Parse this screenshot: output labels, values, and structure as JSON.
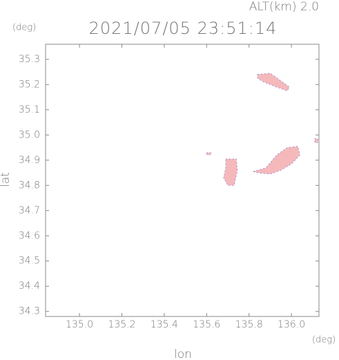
{
  "chart_data": {
    "type": "map",
    "title": "2021/07/05 23:51:14",
    "subtitle": "ALT(km) 2.0",
    "x_label": "lon",
    "y_label": "lat",
    "x_unit": "(deg)",
    "y_unit": "(deg)",
    "xlim": [
      134.84,
      136.13
    ],
    "ylim": [
      34.28,
      35.36
    ],
    "xticks": [
      {
        "value": 135,
        "label": "135.0"
      },
      135.2,
      135.4,
      135.6,
      135.8,
      {
        "value": 136,
        "label": "136.0"
      }
    ],
    "yticks": [
      34.3,
      34.4,
      34.5,
      34.6,
      34.7,
      34.8,
      34.9,
      {
        "value": 35,
        "label": "35.0"
      },
      35.1,
      35.2,
      35.3
    ],
    "color": "#f5b9bb",
    "edge_color": "#8a7bd8",
    "areas": [
      {
        "x": [
          135.84,
          135.9,
          135.95,
          135.99,
          135.98,
          135.93,
          135.87,
          135.84
        ],
        "y": [
          35.24,
          35.245,
          35.215,
          35.19,
          35.175,
          35.19,
          35.21,
          35.225
        ]
      },
      {
        "x": [
          135.69,
          135.74,
          135.745,
          135.73,
          135.7,
          135.68,
          135.69
        ],
        "y": [
          34.905,
          34.905,
          34.86,
          34.8,
          34.8,
          34.83,
          34.87
        ]
      },
      {
        "x": [
          135.82,
          135.88,
          135.93,
          135.98,
          136.03,
          136.04,
          136.0,
          135.95,
          135.9,
          135.84
        ],
        "y": [
          34.855,
          34.87,
          34.92,
          34.95,
          34.955,
          34.92,
          34.885,
          34.86,
          34.845,
          34.85
        ]
      },
      {
        "x": [
          135.6,
          135.62,
          135.62,
          135.6
        ],
        "y": [
          34.93,
          34.93,
          34.922,
          34.922
        ]
      },
      {
        "x": [
          136.11,
          136.125,
          136.125,
          136.11
        ],
        "y": [
          34.985,
          34.985,
          34.97,
          34.97
        ]
      }
    ]
  }
}
